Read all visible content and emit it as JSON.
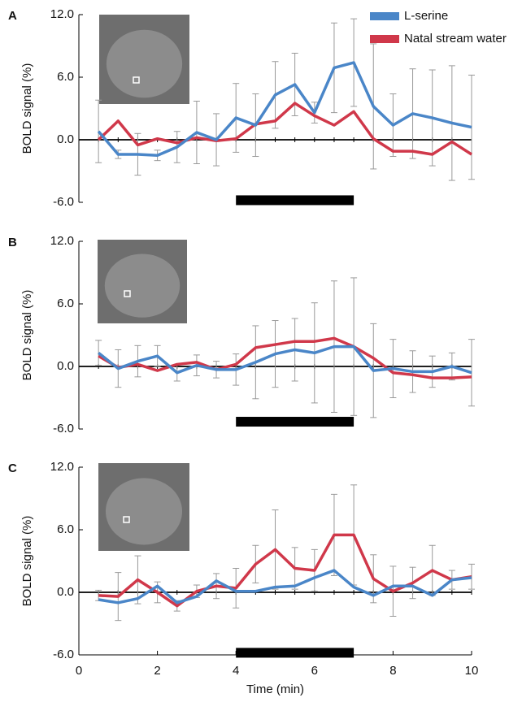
{
  "chart_data": [
    {
      "type": "line",
      "panel_label": "A",
      "ylabel": "BOLD signal (%)",
      "legend": "top right",
      "x": [
        0.5,
        1,
        1.5,
        2,
        2.5,
        3,
        3.5,
        4,
        4.5,
        5,
        5.5,
        6,
        6.5,
        7,
        7.5,
        8,
        8.5,
        9,
        9.5,
        10
      ],
      "series": [
        {
          "name": "L-serine",
          "color": "#4a86c8",
          "values": [
            0.8,
            -1.4,
            -1.4,
            -1.5,
            -0.7,
            0.7,
            0.0,
            2.1,
            1.4,
            4.3,
            5.3,
            2.6,
            6.9,
            7.4,
            3.2,
            1.4,
            2.5,
            2.1,
            1.6,
            1.2
          ],
          "errors": [
            3.0,
            0.4,
            2.0,
            0.5,
            1.5,
            3.0,
            2.5,
            3.3,
            3.0,
            3.2,
            3.0,
            1.0,
            4.3,
            4.2,
            6.0,
            3.0,
            4.3,
            4.6,
            5.5,
            5.0
          ]
        },
        {
          "name": "Natal stream water",
          "color": "#d0384a",
          "values": [
            0.0,
            1.8,
            -0.5,
            0.1,
            -0.3,
            0.2,
            -0.1,
            0.1,
            1.5,
            1.8,
            3.5,
            2.3,
            1.4,
            2.7,
            0.1,
            -1.1,
            -1.1,
            -1.4,
            -0.2,
            -1.4
          ]
        }
      ],
      "stimulus": {
        "x": [
          4,
          7
        ],
        "y": -5.8
      },
      "xlim": [
        0,
        10
      ],
      "ylim": [
        -6,
        12
      ],
      "yticks": [
        {
          "value": -6,
          "label": "-6.0"
        },
        {
          "value": 0,
          "label": "0.0"
        },
        {
          "value": 6,
          "label": "6.0"
        },
        {
          "value": 12,
          "label": "12.0"
        }
      ]
    },
    {
      "type": "line",
      "panel_label": "B",
      "ylabel": "BOLD signal (%)",
      "x": [
        0.5,
        1,
        1.5,
        2,
        2.5,
        3,
        3.5,
        4,
        4.5,
        5,
        5.5,
        6,
        6.5,
        7,
        7.5,
        8,
        8.5,
        9,
        9.5,
        10
      ],
      "series": [
        {
          "color": "#4a86c8",
          "values": [
            1.3,
            -0.2,
            0.5,
            1.0,
            -0.6,
            0.1,
            -0.3,
            -0.3,
            0.4,
            1.2,
            1.6,
            1.3,
            1.9,
            1.9,
            -0.4,
            -0.2,
            -0.5,
            -0.5,
            0.0,
            -0.6
          ],
          "errors": [
            1.2,
            1.8,
            1.5,
            1.0,
            0.8,
            1.0,
            0.8,
            1.5,
            3.5,
            3.2,
            3.0,
            4.8,
            6.3,
            6.6,
            4.5,
            2.8,
            2.0,
            1.5,
            1.3,
            3.2
          ]
        },
        {
          "color": "#d0384a",
          "values": [
            1.0,
            -0.1,
            0.2,
            -0.4,
            0.2,
            0.4,
            -0.3,
            0.2,
            1.8,
            2.1,
            2.4,
            2.4,
            2.7,
            1.9,
            0.8,
            -0.6,
            -0.8,
            -1.1,
            -1.1,
            -1.0
          ]
        }
      ],
      "stimulus": {
        "x": [
          4,
          7
        ],
        "y": -5.3
      },
      "xlim": [
        0,
        10
      ],
      "ylim": [
        -6,
        12
      ],
      "yticks": [
        {
          "value": -6,
          "label": "-6.0"
        },
        {
          "value": 0,
          "label": "0.0"
        },
        {
          "value": 6,
          "label": "6.0"
        },
        {
          "value": 12,
          "label": "12.0"
        }
      ]
    },
    {
      "type": "line",
      "panel_label": "C",
      "ylabel": "BOLD signal (%)",
      "xlabel": "Time (min)",
      "x": [
        0.5,
        1,
        1.5,
        2,
        2.5,
        3,
        3.5,
        4,
        4.5,
        5,
        5.5,
        6,
        6.5,
        7,
        7.5,
        8,
        8.5,
        9,
        9.5,
        10
      ],
      "series": [
        {
          "color": "#4a86c8",
          "values": [
            -0.7,
            -1.0,
            -0.6,
            0.6,
            -1.0,
            -0.4,
            1.1,
            0.1,
            0.1,
            0.5,
            0.6,
            1.4,
            2.1,
            0.5,
            -0.3,
            0.6,
            0.6,
            -0.3,
            1.2,
            1.4
          ]
        },
        {
          "color": "#d0384a",
          "values": [
            -0.3,
            -0.4,
            1.2,
            0.0,
            -1.3,
            0.1,
            0.6,
            0.4,
            2.7,
            4.1,
            2.3,
            2.1,
            5.5,
            5.5,
            1.3,
            0.1,
            0.9,
            2.1,
            1.2,
            1.5
          ],
          "errors": [
            0.5,
            2.3,
            2.3,
            1.0,
            0.5,
            0.6,
            1.2,
            1.9,
            1.8,
            3.8,
            2.0,
            2.0,
            3.9,
            4.8,
            2.3,
            2.4,
            1.5,
            2.4,
            0.9,
            1.2
          ]
        }
      ],
      "stimulus": {
        "x": [
          4,
          7
        ],
        "y": -5.8
      },
      "xlim": [
        0,
        10
      ],
      "ylim": [
        -6,
        12
      ],
      "xticks": [
        0,
        2,
        4,
        6,
        8,
        10
      ],
      "yticks": [
        {
          "value": -6,
          "label": "-6.0"
        },
        {
          "value": 0,
          "label": "0.0"
        },
        {
          "value": 6,
          "label": "6.0"
        },
        {
          "value": 12,
          "label": "12.0"
        }
      ]
    }
  ]
}
